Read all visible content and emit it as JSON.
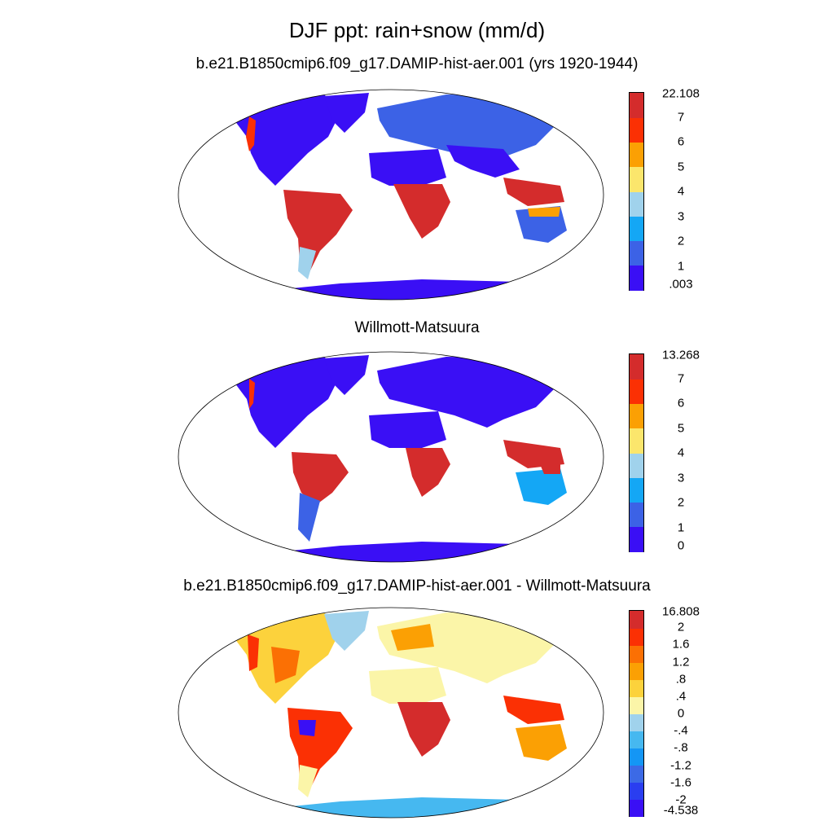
{
  "title": "DJF ppt: rain+snow (mm/d)",
  "panels": [
    {
      "subtitle": "b.e21.B1850cmip6.f09_g17.DAMIP-hist-aer.001 (yrs 1920-1944)",
      "colorbar": {
        "colors": [
          "#3a0ff5",
          "#3c62e6",
          "#14a7f5",
          "#a0d2ec",
          "#fbe66c",
          "#fba004",
          "#fb3004",
          "#d42c2c"
        ],
        "labels": [
          ".003",
          "1",
          "2",
          "3",
          "4",
          "5",
          "6",
          "7",
          "22.108"
        ]
      }
    },
    {
      "subtitle": "Willmott-Matsuura",
      "colorbar": {
        "colors": [
          "#3a0ff5",
          "#3c62e6",
          "#14a7f5",
          "#a0d2ec",
          "#fbe66c",
          "#fba004",
          "#fb3004",
          "#d42c2c"
        ],
        "labels": [
          "0",
          "1",
          "2",
          "3",
          "4",
          "5",
          "6",
          "7",
          "13.268"
        ]
      }
    },
    {
      "subtitle": "b.e21.B1850cmip6.f09_g17.DAMIP-hist-aer.001 - Willmott-Matsuura",
      "colorbar": {
        "colors": [
          "#3a0ff5",
          "#2a3ef0",
          "#3c6ae6",
          "#1496f5",
          "#46b8f0",
          "#a0d2ec",
          "#fbf5a8",
          "#fcd23c",
          "#fba004",
          "#fb7004",
          "#fb3004",
          "#d42c2c"
        ],
        "labels": [
          "-4.538",
          "-2",
          "-1.6",
          "-1.2",
          "-.8",
          "-.4",
          "0",
          ".4",
          ".8",
          "1.2",
          "1.6",
          "2",
          "16.808"
        ]
      }
    }
  ]
}
